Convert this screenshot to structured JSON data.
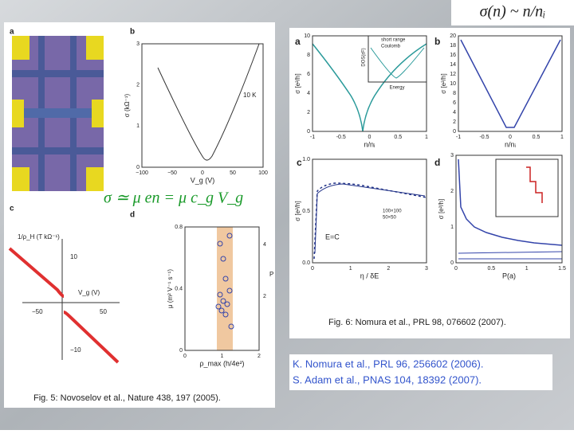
{
  "header": {
    "equation": "σ(n) ~ n/nᵢ"
  },
  "fig5": {
    "panel_labels": [
      "a",
      "b",
      "c",
      "d"
    ],
    "equation": "σ ≃ μ en = μ c_g V_g",
    "b": {
      "ylabel": "σ (kΩ⁻¹)",
      "xlabel": "V_g (V)",
      "yticks": [
        "0",
        "1",
        "2",
        "3"
      ],
      "xticks": [
        "−100",
        "−50",
        "0",
        "50",
        "100"
      ],
      "annotation": "10 K"
    },
    "c": {
      "ylabel": "1/ρ_H (T kΩ⁻¹)",
      "xlabel": "V_g (V)",
      "yticks": [
        "10",
        "−10"
      ],
      "xticks": [
        "−50",
        "50"
      ]
    },
    "d": {
      "ylabel": "μ (m² V⁻¹ s⁻¹)",
      "xlabel": "ρ_max (h/4e²)",
      "yticks": [
        "0",
        "0.4",
        "0.8"
      ],
      "xticks": [
        "0",
        "1",
        "2"
      ],
      "y2ticks": [
        "2",
        "4"
      ],
      "y2label": "P"
    },
    "caption": "Fig. 5: Novoselov et al., Nature 438, 197 (2005)."
  },
  "fig6": {
    "panel_labels": [
      "a",
      "b",
      "c",
      "d"
    ],
    "a": {
      "ylabel": "σ [e²/h]",
      "xlabel": "n/nᵢ",
      "yticks": [
        "0",
        "2",
        "4",
        "6",
        "8",
        "10"
      ],
      "xticks": [
        "-1",
        "-0.5",
        "0",
        "0.5",
        "1"
      ],
      "inset_legend": [
        "short range",
        "Coulomb"
      ],
      "inset_ylabel": "DOS(εF)",
      "inset_xlabel": "Energy"
    },
    "b": {
      "ylabel": "σ [e²/h]",
      "xlabel": "n/nᵢ",
      "yticks": [
        "0",
        "2",
        "4",
        "6",
        "8",
        "10",
        "12",
        "14",
        "16",
        "18",
        "20"
      ],
      "xticks": [
        "-1",
        "-0.5",
        "0",
        "0.5",
        "1"
      ]
    },
    "c": {
      "ylabel": "σ [e²/h]",
      "xlabel": "η / δE",
      "yticks": [
        "0.0",
        "0.5",
        "1.0"
      ],
      "xticks": [
        "0",
        "1",
        "2",
        "3"
      ],
      "annotation": "E=C",
      "inset_legend": [
        "100×100",
        "50×50"
      ]
    },
    "d": {
      "ylabel": "σ [e²/h]",
      "xlabel": "P(a)",
      "yticks": [
        "0",
        "1",
        "2",
        "3"
      ],
      "xticks": [
        "0",
        "0.5",
        "1",
        "1.5"
      ]
    },
    "caption": "Fig. 6: Nomura et al., PRL 98, 076602 (2007)."
  },
  "references": [
    "K. Nomura et al., PRL 96, 256602 (2006).",
    "S. Adam et al., PNAS 104, 18392 (2007)."
  ]
}
